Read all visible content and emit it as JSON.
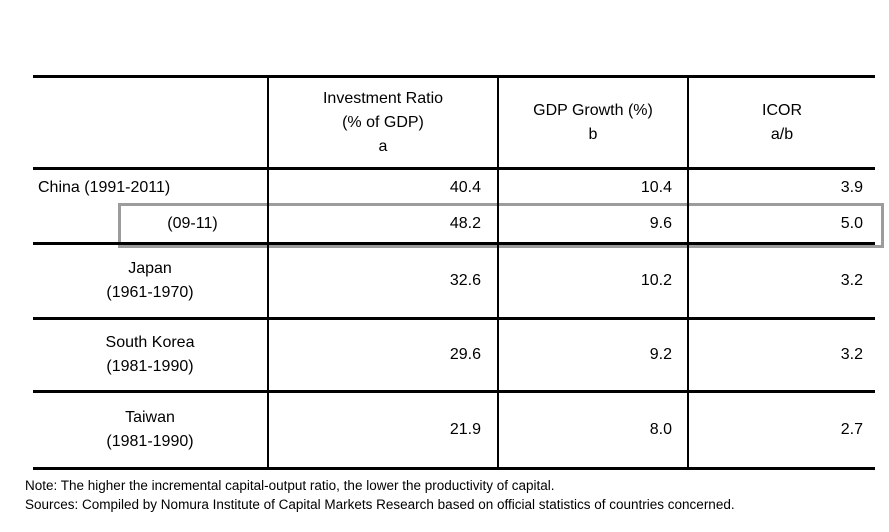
{
  "colors": {
    "text": "#000000",
    "table_line": "#000000",
    "highlight_border": "#9c9c9c",
    "background": "#ffffff"
  },
  "table": {
    "header": {
      "investment": {
        "line1": "Investment Ratio",
        "line2": "(% of GDP)",
        "line3": "a"
      },
      "gdp": {
        "line1": "GDP Growth (%)",
        "line2": "b"
      },
      "icor": {
        "line1": "ICOR",
        "line2": "a/b"
      }
    },
    "rows": {
      "china": {
        "label": "China (1991-2011)",
        "investment": "40.4",
        "gdp": "10.4",
        "icor": "3.9"
      },
      "china_0911": {
        "label": "(09-11)",
        "investment": "48.2",
        "gdp": "9.6",
        "icor": "5.0"
      },
      "japan": {
        "label1": "Japan",
        "label2": "(1961-1970)",
        "investment": "32.6",
        "gdp": "10.2",
        "icor": "3.2"
      },
      "south_korea": {
        "label1": "South Korea",
        "label2": "(1981-1990)",
        "investment": "29.6",
        "gdp": "9.2",
        "icor": "3.2"
      },
      "taiwan": {
        "label1": "Taiwan",
        "label2": "(1981-1990)",
        "investment": "21.9",
        "gdp": "8.0",
        "icor": "2.7"
      }
    }
  },
  "notes": {
    "note": "Note: The higher the incremental capital-output ratio, the lower the productivity of capital.",
    "sources": "Sources: Compiled by Nomura Institute of Capital Markets Research based on official statistics of countries concerned."
  },
  "chart_data": {
    "type": "table",
    "columns": [
      "",
      "Investment Ratio (% of GDP) a",
      "GDP Growth (%) b",
      "ICOR a/b"
    ],
    "rows": [
      [
        "China (1991-2011)",
        40.4,
        10.4,
        3.9
      ],
      [
        "China (09-11)",
        48.2,
        9.6,
        5.0
      ],
      [
        "Japan (1961-1970)",
        32.6,
        10.2,
        3.2
      ],
      [
        "South Korea (1981-1990)",
        29.6,
        9.2,
        3.2
      ],
      [
        "Taiwan (1981-1990)",
        21.9,
        8.0,
        2.7
      ]
    ],
    "highlighted_row": "China (09-11)"
  }
}
